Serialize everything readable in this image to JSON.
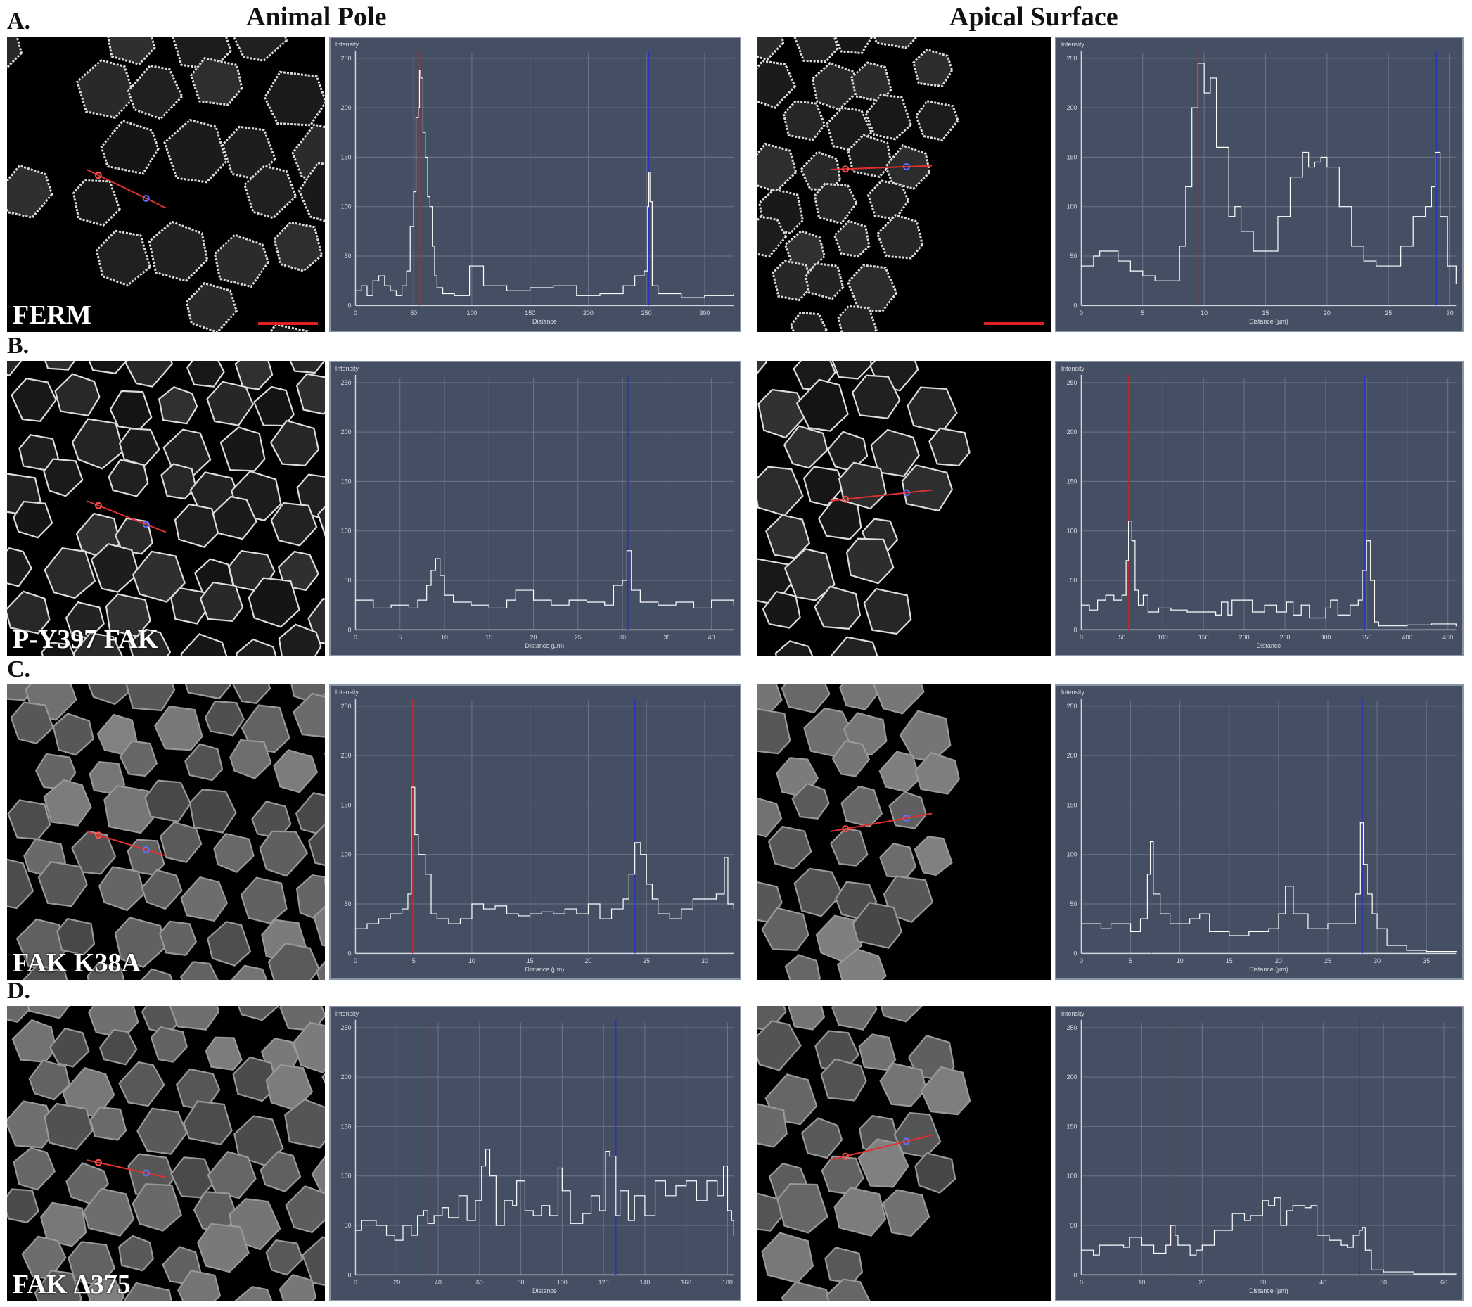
{
  "headers": {
    "left": "Animal Pole",
    "right": "Apical Surface"
  },
  "colors": {
    "plot_bg": "#454f64",
    "grid": "#6b7487",
    "trace": "#ffffff",
    "cursor_red": "#b02a2a",
    "cursor_blue": "#2a35b0",
    "scale_bar": "#e02020"
  },
  "rows": [
    {
      "label": "A.",
      "construct": "FERM"
    },
    {
      "label": "B.",
      "construct": "P-Y397 FAK"
    },
    {
      "label": "C.",
      "construct": "FAK K38A"
    },
    {
      "label": "D.",
      "construct": "FAK Δ375"
    }
  ],
  "chart_data": [
    {
      "panel": "A-animal-pole",
      "type": "line",
      "ylabel": "Intensity",
      "xlabel": "Distance",
      "xlim": [
        0,
        325
      ],
      "ylim": [
        0,
        255
      ],
      "xticks": [
        0,
        50,
        100,
        150,
        200,
        250,
        300
      ],
      "yticks": [
        0,
        50,
        100,
        150,
        200,
        250
      ],
      "grid": true,
      "cursor_red": 55,
      "cursor_blue": 252,
      "x": [
        0,
        5,
        10,
        15,
        20,
        25,
        30,
        35,
        40,
        44,
        47,
        50,
        52,
        54,
        55,
        56,
        58,
        60,
        62,
        64,
        66,
        68,
        70,
        75,
        85,
        98,
        110,
        130,
        150,
        170,
        190,
        210,
        230,
        240,
        248,
        251,
        252,
        253,
        255,
        260,
        280,
        300,
        325
      ],
      "y": [
        15,
        20,
        10,
        25,
        30,
        20,
        15,
        10,
        20,
        35,
        80,
        115,
        190,
        200,
        238,
        230,
        175,
        150,
        110,
        100,
        60,
        30,
        18,
        12,
        10,
        40,
        20,
        15,
        18,
        20,
        10,
        12,
        20,
        30,
        35,
        100,
        135,
        105,
        20,
        12,
        8,
        10,
        12
      ]
    },
    {
      "panel": "A-apical-surface",
      "type": "line",
      "ylabel": "Intensity",
      "xlabel": "Distance (µm)",
      "xlim": [
        0,
        30.5
      ],
      "ylim": [
        0,
        255
      ],
      "xticks": [
        0,
        5,
        10,
        15,
        20,
        25,
        30
      ],
      "yticks": [
        0,
        50,
        100,
        150,
        200,
        250
      ],
      "grid": true,
      "cursor_red": 9.5,
      "cursor_blue": 28.9,
      "x": [
        0,
        1,
        1.5,
        3,
        4,
        5,
        6,
        7,
        8,
        8.5,
        9,
        9.5,
        10,
        10.5,
        11,
        12,
        12.5,
        13,
        14,
        15,
        16,
        17,
        18,
        18.5,
        19,
        19.5,
        20,
        21,
        22,
        23,
        24,
        25,
        26,
        27,
        28,
        28.5,
        28.8,
        29.2,
        29.8,
        30.5
      ],
      "y": [
        40,
        50,
        55,
        45,
        35,
        30,
        25,
        25,
        60,
        120,
        200,
        245,
        215,
        230,
        160,
        90,
        100,
        75,
        55,
        55,
        90,
        130,
        155,
        140,
        145,
        150,
        140,
        100,
        60,
        45,
        40,
        40,
        60,
        90,
        100,
        120,
        155,
        90,
        40,
        22
      ]
    },
    {
      "panel": "B-animal-pole",
      "type": "line",
      "ylabel": "Intensity",
      "xlabel": "Distance (µm)",
      "xlim": [
        0,
        42.5
      ],
      "ylim": [
        0,
        255
      ],
      "xticks": [
        0,
        5,
        10,
        15,
        20,
        25,
        30,
        35,
        40
      ],
      "yticks": [
        0,
        50,
        100,
        150,
        200,
        250
      ],
      "grid": true,
      "cursor_red": 9.2,
      "cursor_blue": 30.6,
      "x": [
        0,
        2,
        4,
        6,
        7,
        8,
        8.5,
        9,
        9.5,
        10,
        11,
        13,
        15,
        17,
        18,
        20,
        22,
        24,
        26,
        28,
        29,
        30,
        30.5,
        31,
        32,
        34,
        36,
        38,
        40,
        42.5
      ],
      "y": [
        30,
        22,
        25,
        22,
        30,
        45,
        60,
        72,
        55,
        35,
        28,
        25,
        22,
        30,
        40,
        30,
        25,
        30,
        28,
        25,
        45,
        50,
        80,
        40,
        28,
        25,
        28,
        22,
        30,
        25
      ]
    },
    {
      "panel": "B-apical-surface",
      "type": "line",
      "ylabel": "Intensity",
      "xlabel": "Distance",
      "xlim": [
        0,
        460
      ],
      "ylim": [
        0,
        255
      ],
      "xticks": [
        0,
        50,
        100,
        150,
        200,
        250,
        300,
        350,
        400,
        450
      ],
      "yticks": [
        0,
        50,
        100,
        150,
        200,
        250
      ],
      "grid": true,
      "cursor_red": 58,
      "cursor_blue": 348,
      "x": [
        0,
        10,
        20,
        30,
        40,
        50,
        55,
        58,
        62,
        66,
        70,
        76,
        82,
        95,
        110,
        130,
        150,
        165,
        172,
        180,
        185,
        198,
        210,
        225,
        240,
        252,
        260,
        270,
        280,
        300,
        306,
        315,
        330,
        340,
        345,
        350,
        355,
        360,
        365,
        400,
        430,
        460
      ],
      "y": [
        25,
        20,
        30,
        35,
        30,
        35,
        70,
        110,
        90,
        40,
        25,
        35,
        18,
        22,
        20,
        18,
        18,
        15,
        28,
        15,
        30,
        30,
        18,
        25,
        18,
        28,
        15,
        25,
        12,
        22,
        30,
        15,
        25,
        30,
        60,
        90,
        50,
        8,
        4,
        5,
        6,
        4
      ]
    },
    {
      "panel": "C-animal-pole",
      "type": "line",
      "ylabel": "Intensity",
      "xlabel": "Distance (µm)",
      "xlim": [
        0,
        32.5
      ],
      "ylim": [
        0,
        255
      ],
      "xticks": [
        0,
        5,
        10,
        15,
        20,
        25,
        30
      ],
      "yticks": [
        0,
        50,
        100,
        150,
        200,
        250
      ],
      "grid": true,
      "cursor_red": 4.9,
      "cursor_blue": 24.0,
      "x": [
        0,
        1,
        2,
        3,
        4,
        4.5,
        4.8,
        5.1,
        5.4,
        6,
        6.5,
        7,
        8,
        9,
        10,
        11,
        12,
        13,
        14,
        15,
        16,
        17,
        18,
        19,
        20,
        21,
        22,
        23,
        23.5,
        24,
        24.5,
        25,
        25.5,
        26,
        27,
        28,
        29,
        30,
        31,
        31.7,
        32,
        32.5
      ],
      "y": [
        25,
        30,
        35,
        40,
        45,
        60,
        168,
        120,
        100,
        80,
        40,
        35,
        30,
        35,
        50,
        45,
        48,
        40,
        38,
        40,
        42,
        40,
        45,
        40,
        50,
        35,
        45,
        55,
        80,
        112,
        100,
        70,
        55,
        40,
        35,
        45,
        55,
        55,
        60,
        97,
        50,
        45
      ]
    },
    {
      "panel": "C-apical-surface",
      "type": "line",
      "ylabel": "Intensity",
      "xlabel": "Distance (µm)",
      "xlim": [
        0,
        38
      ],
      "ylim": [
        0,
        255
      ],
      "xticks": [
        0,
        5,
        10,
        15,
        20,
        25,
        30,
        35
      ],
      "yticks": [
        0,
        50,
        100,
        150,
        200,
        250
      ],
      "grid": true,
      "cursor_red": 7.1,
      "cursor_blue": 28.5,
      "x": [
        0,
        2,
        3,
        5,
        6,
        6.7,
        7,
        7.3,
        8,
        9,
        11,
        12,
        13,
        15,
        17,
        19,
        20,
        20.7,
        21.5,
        23,
        25,
        27,
        27.8,
        28.3,
        28.6,
        29,
        29.5,
        30,
        31,
        33,
        35,
        38
      ],
      "y": [
        30,
        25,
        30,
        22,
        35,
        80,
        113,
        60,
        40,
        30,
        35,
        40,
        22,
        18,
        22,
        25,
        40,
        68,
        40,
        25,
        30,
        30,
        60,
        132,
        90,
        60,
        40,
        25,
        8,
        3,
        2,
        2
      ]
    },
    {
      "panel": "D-animal-pole",
      "type": "line",
      "ylabel": "Intensity",
      "xlabel": "Distance",
      "xlim": [
        0,
        183
      ],
      "ylim": [
        0,
        255
      ],
      "xticks": [
        0,
        20,
        40,
        60,
        80,
        100,
        120,
        140,
        160,
        180
      ],
      "yticks": [
        0,
        50,
        100,
        150,
        200,
        250
      ],
      "grid": true,
      "cursor_red": 35,
      "cursor_blue": 126,
      "x": [
        0,
        3,
        10,
        15,
        19,
        23,
        27,
        30,
        33,
        35,
        38,
        42,
        45,
        50,
        54,
        58,
        61,
        63,
        65,
        68,
        72,
        76,
        78,
        82,
        86,
        90,
        94,
        98,
        100,
        104,
        110,
        114,
        118,
        121,
        123,
        126,
        128,
        132,
        135,
        140,
        145,
        150,
        155,
        160,
        165,
        170,
        175,
        178,
        180,
        182,
        183
      ],
      "y": [
        45,
        55,
        50,
        40,
        35,
        50,
        40,
        60,
        65,
        52,
        60,
        68,
        58,
        80,
        55,
        75,
        110,
        127,
        100,
        50,
        75,
        70,
        95,
        65,
        60,
        70,
        60,
        108,
        85,
        52,
        62,
        80,
        65,
        125,
        120,
        60,
        85,
        55,
        80,
        60,
        95,
        80,
        90,
        95,
        75,
        95,
        80,
        110,
        65,
        55,
        40
      ]
    },
    {
      "panel": "D-apical-surface",
      "type": "line",
      "ylabel": "Intensity",
      "xlabel": "Distance (µm)",
      "xlim": [
        0,
        62
      ],
      "ylim": [
        0,
        255
      ],
      "xticks": [
        0,
        10,
        20,
        30,
        40,
        50,
        60
      ],
      "yticks": [
        0,
        50,
        100,
        150,
        200,
        250
      ],
      "grid": true,
      "cursor_red": 15,
      "cursor_blue": 46,
      "x": [
        0,
        2,
        3,
        5,
        7,
        8,
        10,
        12,
        14,
        14.8,
        15.5,
        16,
        18,
        19,
        20,
        22,
        24,
        25,
        27,
        28,
        30,
        31,
        32,
        33,
        34,
        35,
        37,
        38,
        39,
        41,
        43,
        44,
        45,
        46,
        46.5,
        47,
        48,
        50,
        55,
        62
      ],
      "y": [
        25,
        20,
        30,
        30,
        28,
        38,
        30,
        22,
        30,
        50,
        40,
        30,
        20,
        25,
        30,
        45,
        45,
        62,
        55,
        60,
        75,
        70,
        78,
        50,
        65,
        70,
        68,
        70,
        40,
        35,
        30,
        28,
        40,
        45,
        48,
        25,
        5,
        3,
        1,
        1
      ]
    }
  ]
}
